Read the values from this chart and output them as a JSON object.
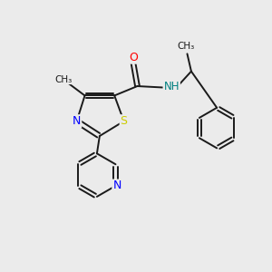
{
  "background_color": "#ebebeb",
  "bond_color": "#1a1a1a",
  "atom_colors": {
    "O": "#ff0000",
    "N": "#0000ff",
    "S": "#cccc00",
    "NH": "#008080",
    "C": "#1a1a1a"
  },
  "figsize": [
    3.0,
    3.0
  ],
  "dpi": 100,
  "xlim": [
    0,
    10
  ],
  "ylim": [
    0,
    10
  ]
}
